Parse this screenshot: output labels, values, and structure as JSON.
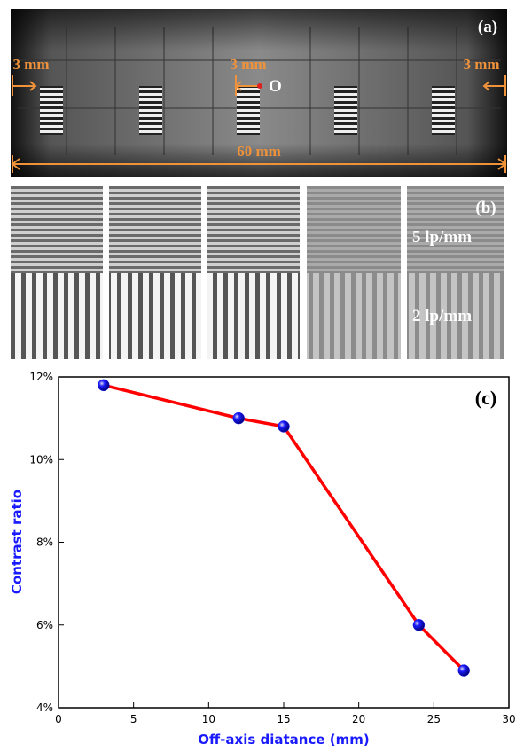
{
  "figure": {
    "panel_a": {
      "label": "(a)",
      "annotations": [
        "3 mm",
        "3 mm",
        "3 mm",
        "60 mm",
        "O"
      ]
    },
    "panel_b": {
      "label": "(b)",
      "annotations": [
        "5 lp/mm",
        "2 lp/mm"
      ]
    }
  },
  "chart_data": {
    "type": "line",
    "panel_label": "(c)",
    "x_label": "Off-axis diatance (mm)",
    "y_label": "Contrast ratio",
    "x": [
      3,
      12,
      15,
      24,
      27
    ],
    "values": [
      11.8,
      11.0,
      10.8,
      6.0,
      4.9
    ],
    "color": "#ff0000",
    "marker_color": "#1a1aff",
    "xlim": [
      0,
      30
    ],
    "xticks": [
      0,
      5,
      10,
      15,
      20,
      25,
      30
    ],
    "ylim": [
      4,
      12
    ],
    "yticks": [
      {
        "value": 4,
        "label": "4%"
      },
      {
        "value": 6,
        "label": "6%"
      },
      {
        "value": 8,
        "label": "8%"
      },
      {
        "value": 10,
        "label": "10%"
      },
      {
        "value": 12,
        "label": "12%"
      }
    ]
  }
}
